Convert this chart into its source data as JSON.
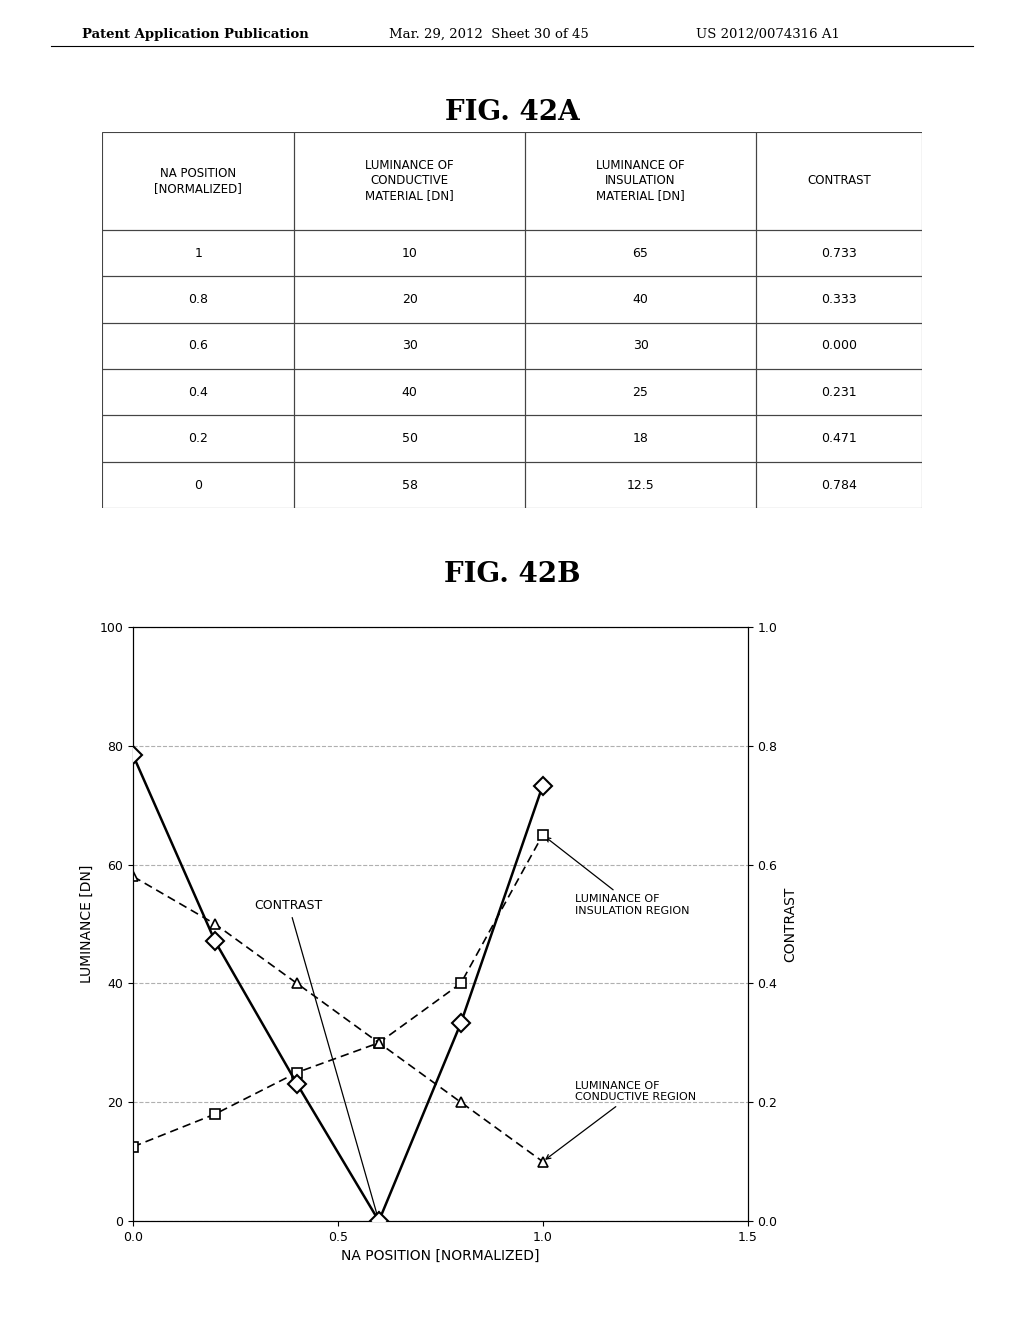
{
  "fig_title_top": "FIG. 42A",
  "fig_title_bottom": "FIG. 42B",
  "patent_header": "Patent Application Publication",
  "patent_date": "Mar. 29, 2012  Sheet 30 of 45",
  "patent_number": "US 2012/0074316 A1",
  "table_headers": [
    "NA POSITION\n[NORMALIZED]",
    "LUMINANCE OF\nCONDUCTIVE\nMATERIAL [DN]",
    "LUMINANCE OF\nINSULATION\nMATERIAL [DN]",
    "CONTRAST"
  ],
  "table_data": [
    [
      "1",
      "10",
      "65",
      "0.733"
    ],
    [
      "0.8",
      "20",
      "40",
      "0.333"
    ],
    [
      "0.6",
      "30",
      "30",
      "0.000"
    ],
    [
      "0.4",
      "40",
      "25",
      "0.231"
    ],
    [
      "0.2",
      "50",
      "18",
      "0.471"
    ],
    [
      "0",
      "58",
      "12.5",
      "0.784"
    ]
  ],
  "na_positions": [
    0,
    0.2,
    0.4,
    0.6,
    0.8,
    1.0
  ],
  "contrast_values": [
    0.784,
    0.471,
    0.231,
    0.0,
    0.333,
    0.733
  ],
  "luminance_insulation": [
    12.5,
    18,
    25,
    30,
    40,
    65
  ],
  "luminance_conductive": [
    58,
    50,
    40,
    30,
    20,
    10
  ],
  "bg_color": "#ffffff",
  "line_color": "#000000",
  "grid_color": "#b0b0b0",
  "ylabel_left": "LUMINANCE [DN]",
  "ylabel_right": "CONTRAST",
  "xlabel": "NA POSITION [NORMALIZED]",
  "ylim_left": [
    0,
    100
  ],
  "ylim_right": [
    0.0,
    1.0
  ],
  "xlim": [
    0,
    1.5
  ]
}
